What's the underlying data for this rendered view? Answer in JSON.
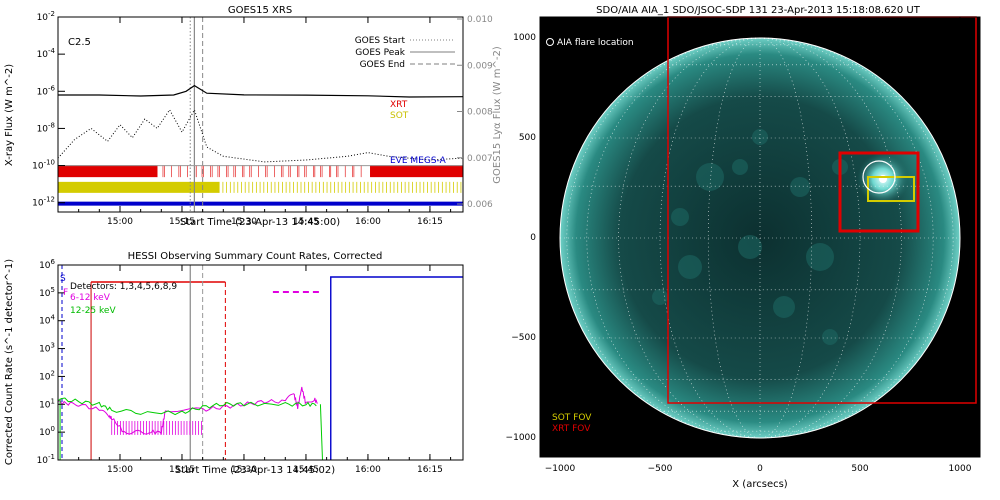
{
  "chart_data": [
    {
      "type": "line",
      "title": "GOES15 XRS",
      "annotation": "C2.5",
      "xlabel": "Start Time (23-Apr-13 14:45:00)",
      "ylabel": "X-ray Flux (W m^-2)",
      "ylabel_right": "GOES15 Lyα Flux (W m^-2)",
      "x_ticks": [
        "15:00",
        "15:15",
        "15:30",
        "15:45",
        "16:00",
        "16:15"
      ],
      "x_tick_minutes": [
        15,
        30,
        45,
        60,
        75,
        90
      ],
      "xlim_minutes": [
        0,
        98
      ],
      "y_ticks": [
        "10^-2",
        "10^-4",
        "10^-6",
        "10^-8",
        "10^-10",
        "10^-12"
      ],
      "y_tick_exp": [
        -2,
        -4,
        -6,
        -8,
        -10,
        -12
      ],
      "ylim_exp": [
        -12.5,
        -2
      ],
      "y2_ticks": [
        "0.010",
        "0.009",
        "0.008",
        "0.007",
        "0.006"
      ],
      "legend": {
        "position": "top-right",
        "items": [
          "GOES Start",
          "GOES Peak",
          "GOES End"
        ]
      },
      "legend_styles": [
        "dotted",
        "solid",
        "dashed"
      ],
      "event_lines_minutes": {
        "start": 32,
        "peak": 33,
        "end": 35
      },
      "instrument_labels": [
        "XRT",
        "SOT",
        "EVE MEGS-A"
      ],
      "instrument_colors": [
        "#e00000",
        "#d4cc00",
        "#0000cc"
      ],
      "series": [
        {
          "name": "",
          "style": "solid",
          "x": [
            0,
            10,
            20,
            28,
            31,
            33,
            36,
            45,
            60,
            75,
            85,
            98
          ],
          "log_y": [
            -6.2,
            -6.2,
            -6.25,
            -6.2,
            -6.0,
            -5.7,
            -6.1,
            -6.2,
            -6.2,
            -6.25,
            -6.3,
            -6.3
          ]
        },
        {
          "name": "",
          "style": "dotted",
          "x": [
            0,
            4,
            8,
            12,
            15,
            18,
            21,
            24,
            27,
            30,
            33,
            36,
            40,
            50,
            60,
            70,
            75,
            80,
            90,
            98
          ],
          "log_y": [
            -9.6,
            -8.6,
            -8.0,
            -8.7,
            -7.8,
            -8.5,
            -7.5,
            -8.0,
            -7.0,
            -8.2,
            -7.0,
            -9.0,
            -9.5,
            -9.8,
            -9.7,
            -9.5,
            -9.3,
            -9.5,
            -9.7,
            -9.6
          ]
        },
        {
          "name": "",
          "style": "solid-gray",
          "x": [
            0,
            30,
            60,
            98
          ],
          "log_y": [
            -10.0,
            -10.0,
            -10.0,
            -10.0
          ]
        }
      ]
    },
    {
      "type": "line",
      "title": "HESSI Observing Summary Count Rates, Corrected",
      "xlabel": "Start Time (23-Apr-13 14:45:02)",
      "ylabel": "Corrected Count Rate (s^-1 detector^-1)",
      "x_ticks": [
        "15:00",
        "15:15",
        "15:30",
        "15:45",
        "16:00",
        "16:15"
      ],
      "x_tick_minutes": [
        15,
        30,
        45,
        60,
        75,
        90
      ],
      "xlim_minutes": [
        0,
        98
      ],
      "y_ticks": [
        "10^6",
        "10^5",
        "10^4",
        "10^3",
        "10^2",
        "10^1",
        "10^0",
        "10^-1"
      ],
      "y_tick_exp": [
        6,
        5,
        4,
        3,
        2,
        1,
        0,
        -1
      ],
      "ylim_exp": [
        -1,
        6
      ],
      "legend_title": "Detectors: 1,3,4,5,6,8,9",
      "legend_entries": [
        "6-12 keV",
        "12-25 keV"
      ],
      "legend_colors": [
        "#e000e0",
        "#00cc00"
      ],
      "markers": [
        "S",
        "F"
      ],
      "series": [
        {
          "name": "6-12 keV",
          "x": [
            0,
            3,
            5,
            10,
            12,
            13,
            16,
            20,
            22,
            25,
            26,
            35,
            40,
            45,
            50,
            55,
            57,
            58,
            59,
            60,
            62,
            63
          ],
          "log_y": [
            1.1,
            1.0,
            1.0,
            0.8,
            0.6,
            0.5,
            0.0,
            0.0,
            0.0,
            0.0,
            0.8,
            0.8,
            0.9,
            1.0,
            1.1,
            1.1,
            1.4,
            0.9,
            1.6,
            1.0,
            1.2,
            1.0
          ]
        },
        {
          "name": "12-25 keV",
          "x": [
            0,
            5,
            10,
            13,
            20,
            30,
            35,
            40,
            45,
            55,
            60,
            63
          ],
          "log_y": [
            1.2,
            1.1,
            1.0,
            0.8,
            0.7,
            0.7,
            0.9,
            1.0,
            1.0,
            1.0,
            1.0,
            1.0
          ]
        }
      ]
    },
    {
      "type": "heatmap",
      "title": "SDO/AIA AIA_1 SDO/JSOC-SDP 131 23-Apr-2013 15:18:08.620 UT",
      "xlabel": "X (arcsecs)",
      "ylabel": "",
      "x_ticks": [
        "−1000",
        "−500",
        "0",
        "500",
        "1000"
      ],
      "x_tick_values": [
        -1000,
        -500,
        0,
        500,
        1000
      ],
      "y_ticks": [
        "1000",
        "500",
        "0",
        "−500",
        "−1000"
      ],
      "y_tick_values": [
        1000,
        500,
        0,
        -500,
        -1000
      ],
      "xlim": [
        -1100,
        1100
      ],
      "ylim": [
        -1100,
        1100
      ],
      "annotation_flare": "AIA flare location",
      "fov_labels": [
        "SOT FOV",
        "XRT FOV"
      ],
      "fov_label_colors": [
        "#d4cc00",
        "#e00000"
      ],
      "flare_location": [
        615,
        290
      ],
      "xrt_fov_arcsec": [
        -460,
        -830,
        1080,
        1100
      ],
      "sot_fov_arcsec": [
        540,
        180,
        770,
        300
      ],
      "zoom_box_arcsec": [
        400,
        30,
        790,
        420
      ]
    }
  ]
}
